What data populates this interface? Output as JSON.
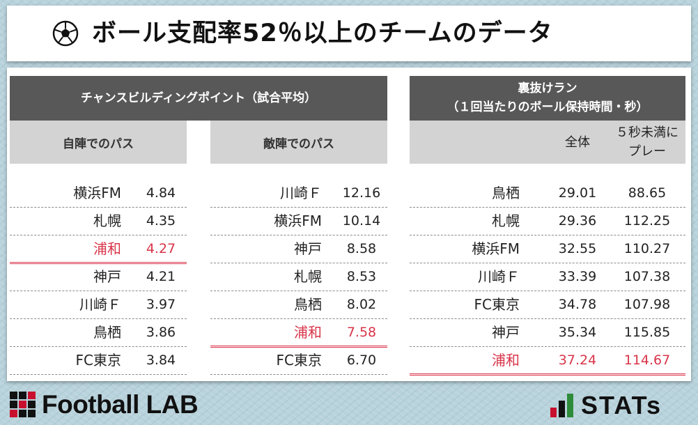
{
  "header": {
    "icon": "soccer-ball-icon",
    "title": "ボール支配率52％以上のチームのデータ"
  },
  "chance_building": {
    "title": "チャンスビルディングポイント（試合平均）",
    "own_half": {
      "label": "自陣でのパス",
      "rows": [
        {
          "team": "横浜FM",
          "value": "4.84",
          "highlight": false
        },
        {
          "team": "札幌",
          "value": "4.35",
          "highlight": false
        },
        {
          "team": "浦和",
          "value": "4.27",
          "highlight": true
        },
        {
          "team": "神戸",
          "value": "4.21",
          "highlight": false
        },
        {
          "team": "川崎Ｆ",
          "value": "3.97",
          "highlight": false
        },
        {
          "team": "鳥栖",
          "value": "3.86",
          "highlight": false
        },
        {
          "team": "FC東京",
          "value": "3.84",
          "highlight": false
        }
      ]
    },
    "opp_half": {
      "label": "敵陣でのパス",
      "rows": [
        {
          "team": "川崎Ｆ",
          "value": "12.16",
          "highlight": false
        },
        {
          "team": "横浜FM",
          "value": "10.14",
          "highlight": false
        },
        {
          "team": "神戸",
          "value": "8.58",
          "highlight": false
        },
        {
          "team": "札幌",
          "value": "8.53",
          "highlight": false
        },
        {
          "team": "鳥栖",
          "value": "8.02",
          "highlight": false
        },
        {
          "team": "浦和",
          "value": "7.58",
          "highlight": true
        },
        {
          "team": "FC東京",
          "value": "6.70",
          "highlight": false
        }
      ]
    }
  },
  "back_run": {
    "title_line1": "裏抜けラン",
    "title_line2": "（１回当たりのボール保持時間・秒）",
    "col_all": "全体",
    "col_under5_line1": "５秒未満に",
    "col_under5_line2": "プレー",
    "rows": [
      {
        "team": "鳥栖",
        "all": "29.01",
        "under5": "88.65",
        "highlight": false
      },
      {
        "team": "札幌",
        "all": "29.36",
        "under5": "112.25",
        "highlight": false
      },
      {
        "team": "横浜FM",
        "all": "32.55",
        "under5": "110.27",
        "highlight": false
      },
      {
        "team": "川崎Ｆ",
        "all": "33.39",
        "under5": "107.38",
        "highlight": false
      },
      {
        "team": "FC東京",
        "all": "34.78",
        "under5": "107.98",
        "highlight": false
      },
      {
        "team": "神戸",
        "all": "35.34",
        "under5": "115.85",
        "highlight": false
      },
      {
        "team": "浦和",
        "all": "37.24",
        "under5": "114.67",
        "highlight": true
      }
    ]
  },
  "footer": {
    "left_logo_text": "Football LAB",
    "right_logo_text": "STATs"
  },
  "colors": {
    "highlight": "#d9354a",
    "header_dark": "#585858",
    "header_light": "#d3d3d3",
    "background": "#b9d3dc"
  }
}
